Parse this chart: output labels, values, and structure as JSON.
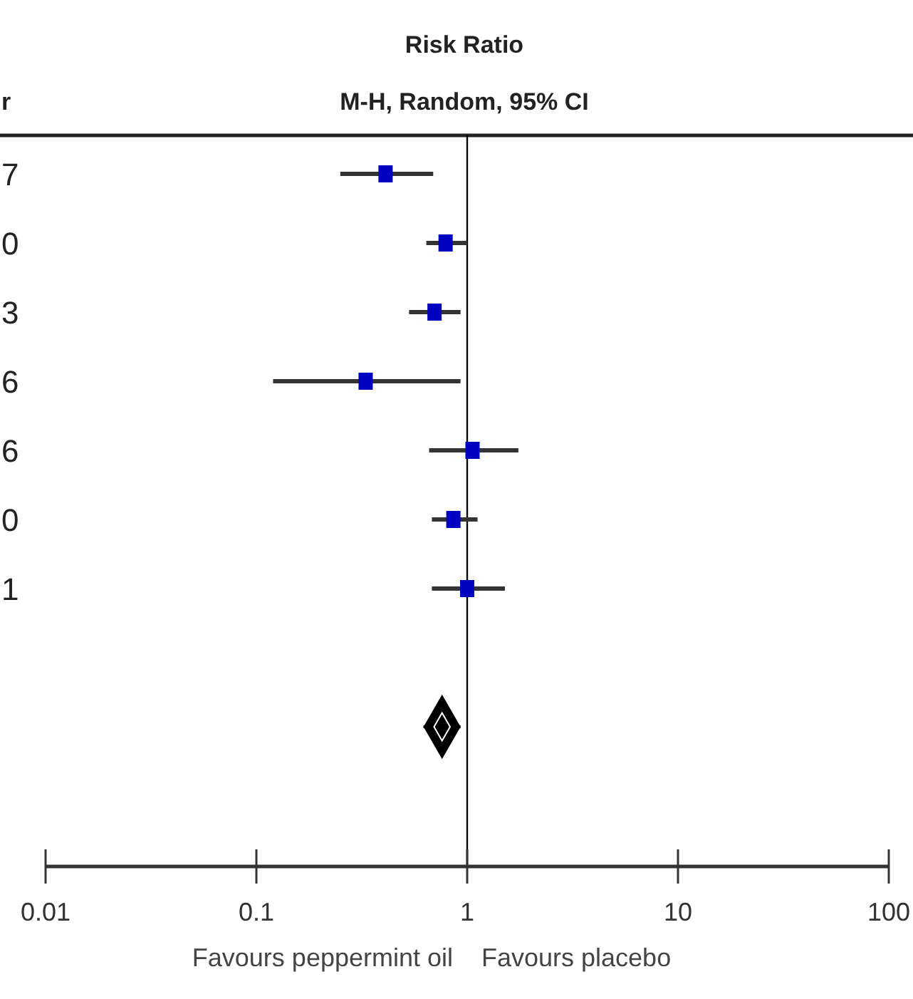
{
  "chart_data": {
    "type": "scatter",
    "title": "Risk Ratio",
    "subtitle": "M-H, Random, 95% CI",
    "orientation": "horizontal",
    "categories": [
      "7",
      "0",
      "3",
      "6",
      "6",
      "0",
      "1",
      null,
      null
    ],
    "series": [
      {
        "color": "#0000c0",
        "marker": "square",
        "values": [
          0.41,
          0.79,
          0.7,
          0.33,
          1.06,
          0.86,
          1.0,
          null,
          null
        ],
        "errors": [
          [
            0.25,
            0.69
          ],
          [
            0.64,
            1.0
          ],
          [
            0.53,
            0.93
          ],
          [
            0.12,
            0.93
          ],
          [
            0.66,
            1.75
          ],
          [
            0.68,
            1.12
          ],
          [
            0.68,
            1.51
          ],
          null,
          null
        ]
      },
      {
        "color": "#000000",
        "marker": "diamond",
        "values": [
          null,
          null,
          null,
          null,
          null,
          null,
          null,
          null,
          0.76
        ],
        "errors": [
          null,
          null,
          null,
          null,
          null,
          null,
          null,
          null,
          [
            0.62,
            0.93
          ]
        ]
      }
    ],
    "xlim": [
      0.01,
      100
    ],
    "xticks": [
      0.01,
      0.1,
      1,
      10,
      100
    ],
    "log": "x",
    "grid": false,
    "legend": false,
    "ref_lines": [
      {
        "axis": "x",
        "value": 1,
        "color": "#000000"
      }
    ],
    "annotations": [
      "r",
      "Favours peppermint oil",
      "Favours placebo"
    ]
  }
}
